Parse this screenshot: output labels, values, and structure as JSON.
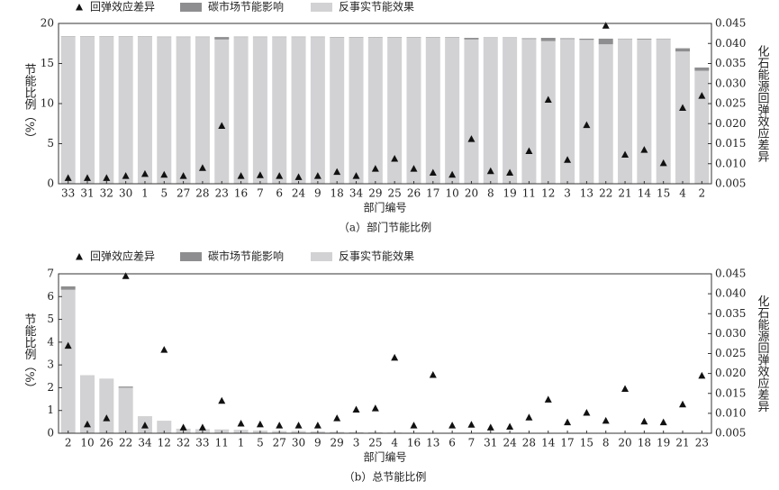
{
  "chart_data": [
    {
      "type": "bar",
      "caption": "（a）部门节能比例",
      "x_label": "部门编号",
      "y_label": "节能比例（%）",
      "y2_label": "化石能源回弹效应差异",
      "categories": [
        "33",
        "31",
        "32",
        "30",
        "1",
        "5",
        "27",
        "28",
        "23",
        "16",
        "7",
        "6",
        "24",
        "9",
        "18",
        "34",
        "29",
        "25",
        "26",
        "17",
        "10",
        "20",
        "8",
        "19",
        "11",
        "12",
        "3",
        "13",
        "22",
        "21",
        "14",
        "15",
        "4",
        "2"
      ],
      "series": [
        {
          "name": "回弹效应差异",
          "color": "#111111",
          "axis": "y2",
          "values": [
            0.0065,
            0.0065,
            0.0065,
            0.007,
            0.0075,
            0.0073,
            0.007,
            0.009,
            0.0195,
            0.007,
            0.0072,
            0.007,
            0.0067,
            0.007,
            0.008,
            0.007,
            0.0088,
            0.0113,
            0.0088,
            0.0078,
            0.0073,
            0.0162,
            0.0082,
            0.0078,
            0.0132,
            0.026,
            0.011,
            0.0197,
            0.0445,
            0.0123,
            0.0135,
            0.0102,
            0.024,
            0.027
          ]
        },
        {
          "name": "碳市场节能影响",
          "color": "#8e8e90",
          "values": [
            0.05,
            0.05,
            0.05,
            0.05,
            0.05,
            0.05,
            0.05,
            0.05,
            0.3,
            0.05,
            0.05,
            0.05,
            0.05,
            0.05,
            0.05,
            0.05,
            0.05,
            0.05,
            0.05,
            0.05,
            0.05,
            0.2,
            0.05,
            0.05,
            0.1,
            0.4,
            0.1,
            0.15,
            0.7,
            0.05,
            0.1,
            0.05,
            0.4,
            0.4
          ]
        },
        {
          "name": "反事实节能效果",
          "color": "#d2d2d4",
          "values": [
            18.35,
            18.35,
            18.35,
            18.35,
            18.35,
            18.3,
            18.3,
            18.3,
            18.0,
            18.3,
            18.3,
            18.3,
            18.3,
            18.3,
            18.25,
            18.25,
            18.25,
            18.25,
            18.25,
            18.25,
            18.25,
            18.0,
            18.2,
            18.2,
            18.05,
            17.8,
            18.05,
            17.95,
            17.4,
            18.05,
            18.0,
            18.05,
            16.5,
            14.1
          ]
        }
      ],
      "ylim": [
        0,
        20
      ],
      "yticks": [
        0,
        5,
        10,
        15,
        20
      ],
      "y2lim": [
        0.005,
        0.045
      ],
      "y2ticks": [
        0.005,
        {
          "value": 0.01,
          "label": "0.010"
        },
        0.015,
        {
          "value": 0.02,
          "label": "0.020"
        },
        0.025,
        {
          "value": 0.03,
          "label": "0.030"
        },
        0.035,
        {
          "value": 0.04,
          "label": "0.040"
        },
        0.045
      ]
    },
    {
      "type": "bar",
      "caption": "（b）总节能比例",
      "x_label": "部门编号",
      "y_label": "节能比例（%）",
      "y2_label": "化石能源回弹效应差异",
      "categories": [
        "2",
        "10",
        "26",
        "22",
        "34",
        "12",
        "32",
        "33",
        "11",
        "1",
        "5",
        "27",
        "30",
        "9",
        "29",
        "3",
        "25",
        "4",
        "16",
        "13",
        "6",
        "7",
        "31",
        "24",
        "28",
        "14",
        "17",
        "15",
        "8",
        "20",
        "18",
        "19",
        "21",
        "23"
      ],
      "series": [
        {
          "name": "回弹效应差异",
          "color": "#111111",
          "axis": "y2",
          "values": [
            0.027,
            0.0073,
            0.0088,
            0.0445,
            0.007,
            0.026,
            0.0065,
            0.0065,
            0.0132,
            0.0075,
            0.0073,
            0.007,
            0.007,
            0.007,
            0.0088,
            0.011,
            0.0113,
            0.024,
            0.007,
            0.0197,
            0.007,
            0.0072,
            0.0065,
            0.0067,
            0.009,
            0.0135,
            0.0078,
            0.0102,
            0.0082,
            0.0162,
            0.008,
            0.0078,
            0.0123,
            0.0195
          ]
        },
        {
          "name": "碳市场节能影响",
          "color": "#8e8e90",
          "values": [
            0.15,
            0,
            0,
            0.05,
            0,
            0,
            0,
            0,
            0,
            0,
            0,
            0,
            0,
            0,
            0,
            0,
            0,
            0,
            0,
            0,
            0,
            0,
            0,
            0,
            0,
            0,
            0,
            0,
            0,
            0,
            0,
            0,
            0,
            0
          ]
        },
        {
          "name": "反事实节能效果",
          "color": "#d2d2d4",
          "values": [
            6.3,
            2.55,
            2.4,
            2.0,
            0.75,
            0.55,
            0.2,
            0.18,
            0.17,
            0.15,
            0.12,
            0.1,
            0.1,
            0.08,
            0.06,
            0.05,
            0.04,
            0.03,
            0.02,
            0.02,
            0.02,
            0.02,
            0.02,
            0.01,
            0.01,
            0.01,
            0.01,
            0.01,
            0.01,
            0.01,
            0.01,
            0.01,
            0.01,
            0.01
          ]
        }
      ],
      "ylim": [
        0,
        7
      ],
      "yticks": [
        0,
        1,
        2,
        3,
        4,
        5,
        6,
        7
      ],
      "y2lim": [
        0.005,
        0.045
      ],
      "y2ticks": [
        0.005,
        {
          "value": 0.01,
          "label": "0.010"
        },
        0.015,
        {
          "value": 0.02,
          "label": "0.020"
        },
        0.025,
        {
          "value": 0.03,
          "label": "0.030"
        },
        0.035,
        {
          "value": 0.04,
          "label": "0.040"
        },
        0.045
      ]
    }
  ]
}
